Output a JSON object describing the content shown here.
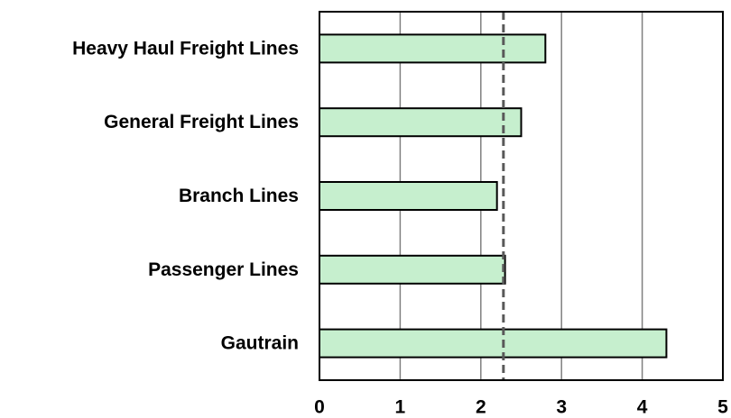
{
  "chart_data": {
    "type": "bar",
    "orientation": "horizontal",
    "categories": [
      "Heavy Haul Freight Lines",
      "General Freight Lines",
      "Branch Lines",
      "Passenger Lines",
      "Gautrain"
    ],
    "values": [
      2.8,
      2.5,
      2.2,
      2.3,
      4.3
    ],
    "title": "",
    "xlabel": "",
    "ylabel": "",
    "xlim": [
      0,
      5
    ],
    "xticks": [
      "0",
      "1",
      "2",
      "3",
      "4",
      "5"
    ],
    "reference_line": {
      "value": 2.28,
      "style": "dashed"
    },
    "grid": "vertical",
    "legend": "none",
    "colors": {
      "bar_fill": "#c6efce",
      "bar_stroke": "#000000",
      "grid": "#808080",
      "reference_line": "#595959"
    }
  }
}
